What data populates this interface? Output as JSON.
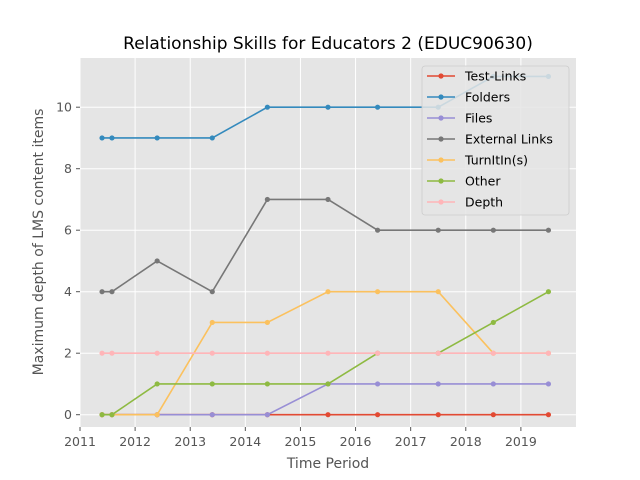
{
  "chart_data": {
    "type": "line",
    "title": "Relationship Skills for Educators 2 (EDUC90630)",
    "xlabel": "Time Period",
    "ylabel": "Maximum depth of LMS content items",
    "xlim": [
      2011,
      2020
    ],
    "ylim": [
      -0.4,
      11.6
    ],
    "xticks": [
      2011,
      2012,
      2013,
      2014,
      2015,
      2016,
      2017,
      2018,
      2019
    ],
    "yticks": [
      0,
      2,
      4,
      6,
      8,
      10
    ],
    "grid": true,
    "legend_position": "top-right",
    "x": [
      2011.4,
      2011.58,
      2012.4,
      2013.4,
      2014.4,
      2015.5,
      2016.4,
      2017.5,
      2018.5,
      2019.5
    ],
    "series": [
      {
        "name": "Test-Links",
        "color": "#E24A33",
        "values": [
          0,
          0,
          0,
          0,
          0,
          0,
          0,
          0,
          0,
          0
        ]
      },
      {
        "name": "Folders",
        "color": "#348ABD",
        "values": [
          9,
          9,
          9,
          9,
          10,
          10,
          10,
          10,
          11,
          11
        ]
      },
      {
        "name": "Files",
        "color": "#988ED5",
        "values": [
          0,
          0,
          0,
          0,
          0,
          1,
          1,
          1,
          1,
          1
        ]
      },
      {
        "name": "External Links",
        "color": "#777777",
        "values": [
          4,
          4,
          5,
          4,
          7,
          7,
          6,
          6,
          6,
          6
        ]
      },
      {
        "name": "TurnItIn(s)",
        "color": "#FBC15E",
        "values": [
          0,
          0,
          0,
          3,
          3,
          4,
          4,
          4,
          2,
          2
        ]
      },
      {
        "name": "Other",
        "color": "#8EBA42",
        "values": [
          0,
          0,
          1,
          1,
          1,
          1,
          2,
          2,
          3,
          4
        ]
      },
      {
        "name": "Depth",
        "color": "#FFB5B8",
        "values": [
          2,
          2,
          2,
          2,
          2,
          2,
          2,
          2,
          2,
          2
        ]
      }
    ]
  }
}
